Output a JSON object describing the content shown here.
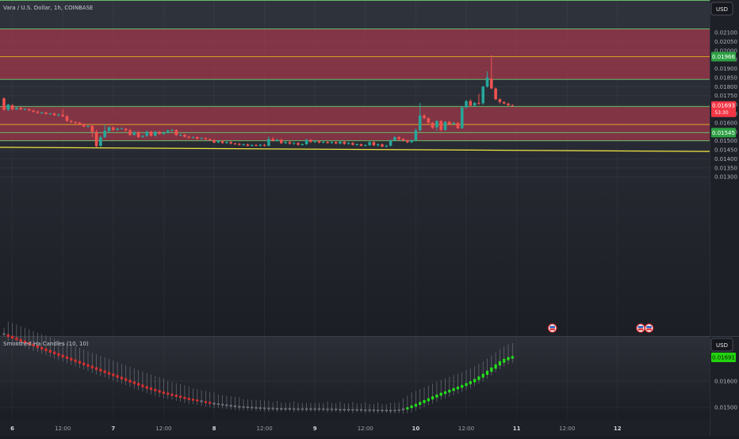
{
  "header": {
    "symbol_title": "Vara / U.S. Dollar, 1h, COINBASE",
    "currency_button": "USD"
  },
  "main_chart": {
    "price_ticks": [
      "0.02100",
      "0.02050",
      "0.02000",
      "0.01950",
      "0.01900",
      "0.01850",
      "0.01800",
      "0.01750",
      "0.01700",
      "0.01650",
      "0.01600",
      "0.01550",
      "0.01500",
      "0.01450",
      "0.01400",
      "0.01350",
      "0.01300"
    ],
    "price_tick_values": [
      0.021,
      0.0205,
      0.02,
      0.0195,
      0.019,
      0.0185,
      0.018,
      0.0175,
      0.017,
      0.0165,
      0.016,
      0.0155,
      0.015,
      0.0145,
      0.014,
      0.0135,
      0.013
    ],
    "labels": {
      "resistance": "0.01966",
      "current_price": "0.01693",
      "countdown": "53:30",
      "support": "0.01545"
    },
    "zones": [
      {
        "name": "upper-supply-zone",
        "top": 0.0212,
        "bottom": 0.0184
      },
      {
        "name": "lower-supply-zone",
        "top": 0.0169,
        "bottom": 0.015
      }
    ],
    "horizontal_lines": [
      {
        "name": "line-0.02120",
        "price": 0.0212,
        "color": "#66bb6a"
      },
      {
        "name": "line-0.01966",
        "price": 0.01966,
        "color": "#d4a027"
      },
      {
        "name": "line-0.01840",
        "price": 0.0184,
        "color": "#66bb6a"
      },
      {
        "name": "line-0.01690",
        "price": 0.0169,
        "color": "#66bb6a"
      },
      {
        "name": "line-0.01590",
        "price": 0.0159,
        "color": "#e6a22e"
      },
      {
        "name": "line-0.01545",
        "price": 0.01545,
        "color": "#66bb6a"
      },
      {
        "name": "line-0.01500",
        "price": 0.015,
        "color": "#66bb6a"
      }
    ],
    "trendline": {
      "from_price": 0.01464,
      "to_price": 0.01441,
      "color": "#f2e643"
    },
    "candles": [
      {
        "o": 0.01735,
        "c": 0.01672,
        "h": 0.0174,
        "l": 0.01665
      },
      {
        "o": 0.01672,
        "c": 0.017,
        "h": 0.01706,
        "l": 0.01664
      },
      {
        "o": 0.01697,
        "c": 0.01674,
        "h": 0.01703,
        "l": 0.01669
      },
      {
        "o": 0.01675,
        "c": 0.01683,
        "h": 0.01688,
        "l": 0.01669
      },
      {
        "o": 0.01682,
        "c": 0.01674,
        "h": 0.01688,
        "l": 0.01669
      },
      {
        "o": 0.01673,
        "c": 0.01676,
        "h": 0.01681,
        "l": 0.01668
      },
      {
        "o": 0.01675,
        "c": 0.01668,
        "h": 0.0168,
        "l": 0.01663
      },
      {
        "o": 0.01667,
        "c": 0.01661,
        "h": 0.01673,
        "l": 0.01656
      },
      {
        "o": 0.01662,
        "c": 0.01655,
        "h": 0.01667,
        "l": 0.0165
      },
      {
        "o": 0.01655,
        "c": 0.01657,
        "h": 0.01662,
        "l": 0.0165
      },
      {
        "o": 0.01656,
        "c": 0.01649,
        "h": 0.01661,
        "l": 0.01644
      },
      {
        "o": 0.01649,
        "c": 0.01651,
        "h": 0.01654,
        "l": 0.01644
      },
      {
        "o": 0.01651,
        "c": 0.01642,
        "h": 0.01656,
        "l": 0.01637
      },
      {
        "o": 0.01643,
        "c": 0.01645,
        "h": 0.01651,
        "l": 0.01636
      },
      {
        "o": 0.01644,
        "c": 0.01636,
        "h": 0.01676,
        "l": 0.01631
      },
      {
        "o": 0.01636,
        "c": 0.0161,
        "h": 0.01642,
        "l": 0.01605
      },
      {
        "o": 0.0161,
        "c": 0.01604,
        "h": 0.01616,
        "l": 0.01598
      },
      {
        "o": 0.01604,
        "c": 0.016,
        "h": 0.01609,
        "l": 0.01593
      },
      {
        "o": 0.016,
        "c": 0.01592,
        "h": 0.01605,
        "l": 0.01586
      },
      {
        "o": 0.01592,
        "c": 0.0158,
        "h": 0.01597,
        "l": 0.01575
      },
      {
        "o": 0.01581,
        "c": 0.01582,
        "h": 0.01587,
        "l": 0.01575
      },
      {
        "o": 0.01582,
        "c": 0.0155,
        "h": 0.01588,
        "l": 0.0152
      },
      {
        "o": 0.0155,
        "c": 0.0147,
        "h": 0.01562,
        "l": 0.01463
      },
      {
        "o": 0.01472,
        "c": 0.0152,
        "h": 0.01527,
        "l": 0.01466
      },
      {
        "o": 0.0152,
        "c": 0.01556,
        "h": 0.01591,
        "l": 0.01515
      },
      {
        "o": 0.01553,
        "c": 0.01575,
        "h": 0.0158,
        "l": 0.01548
      },
      {
        "o": 0.01575,
        "c": 0.0156,
        "h": 0.01578,
        "l": 0.01555
      },
      {
        "o": 0.0156,
        "c": 0.01567,
        "h": 0.01574,
        "l": 0.01555
      },
      {
        "o": 0.01567,
        "c": 0.01568,
        "h": 0.01575,
        "l": 0.01562
      },
      {
        "o": 0.01567,
        "c": 0.01558,
        "h": 0.01571,
        "l": 0.01552
      },
      {
        "o": 0.01558,
        "c": 0.01532,
        "h": 0.01566,
        "l": 0.01528
      },
      {
        "o": 0.01533,
        "c": 0.01548,
        "h": 0.01555,
        "l": 0.01528
      },
      {
        "o": 0.01548,
        "c": 0.01521,
        "h": 0.01553,
        "l": 0.01515
      },
      {
        "o": 0.01521,
        "c": 0.01527,
        "h": 0.01534,
        "l": 0.01516
      },
      {
        "o": 0.01527,
        "c": 0.01551,
        "h": 0.01557,
        "l": 0.01522
      },
      {
        "o": 0.01551,
        "c": 0.01528,
        "h": 0.01556,
        "l": 0.01522
      },
      {
        "o": 0.01528,
        "c": 0.0155,
        "h": 0.01556,
        "l": 0.01524
      },
      {
        "o": 0.0155,
        "c": 0.01538,
        "h": 0.01555,
        "l": 0.01533
      },
      {
        "o": 0.01538,
        "c": 0.01545,
        "h": 0.01552,
        "l": 0.01533
      },
      {
        "o": 0.01545,
        "c": 0.01557,
        "h": 0.01563,
        "l": 0.0154
      },
      {
        "o": 0.01557,
        "c": 0.0156,
        "h": 0.01566,
        "l": 0.01551
      },
      {
        "o": 0.0156,
        "c": 0.01532,
        "h": 0.01565,
        "l": 0.01526
      },
      {
        "o": 0.01532,
        "c": 0.01533,
        "h": 0.0154,
        "l": 0.01526
      },
      {
        "o": 0.01533,
        "c": 0.01523,
        "h": 0.01539,
        "l": 0.01518
      },
      {
        "o": 0.01523,
        "c": 0.01518,
        "h": 0.01528,
        "l": 0.01512
      },
      {
        "o": 0.01518,
        "c": 0.0152,
        "h": 0.01524,
        "l": 0.01513
      },
      {
        "o": 0.0152,
        "c": 0.01512,
        "h": 0.01524,
        "l": 0.01507
      },
      {
        "o": 0.01512,
        "c": 0.01515,
        "h": 0.0152,
        "l": 0.01507
      },
      {
        "o": 0.01514,
        "c": 0.01509,
        "h": 0.0152,
        "l": 0.01504
      },
      {
        "o": 0.01509,
        "c": 0.01504,
        "h": 0.01514,
        "l": 0.01499
      },
      {
        "o": 0.01504,
        "c": 0.0149,
        "h": 0.01509,
        "l": 0.01486
      },
      {
        "o": 0.01491,
        "c": 0.01498,
        "h": 0.01503,
        "l": 0.01486
      },
      {
        "o": 0.01498,
        "c": 0.01488,
        "h": 0.01503,
        "l": 0.01483
      },
      {
        "o": 0.01488,
        "c": 0.01493,
        "h": 0.01498,
        "l": 0.01483
      },
      {
        "o": 0.01493,
        "c": 0.01485,
        "h": 0.01498,
        "l": 0.0148
      },
      {
        "o": 0.01485,
        "c": 0.01483,
        "h": 0.0149,
        "l": 0.01478
      },
      {
        "o": 0.01483,
        "c": 0.01478,
        "h": 0.01488,
        "l": 0.01473
      },
      {
        "o": 0.01478,
        "c": 0.0148,
        "h": 0.01485,
        "l": 0.01473
      },
      {
        "o": 0.0148,
        "c": 0.01473,
        "h": 0.01485,
        "l": 0.01468
      },
      {
        "o": 0.01473,
        "c": 0.01477,
        "h": 0.01482,
        "l": 0.01468
      },
      {
        "o": 0.01477,
        "c": 0.01473,
        "h": 0.01482,
        "l": 0.01468
      },
      {
        "o": 0.01473,
        "c": 0.01478,
        "h": 0.01483,
        "l": 0.01468
      },
      {
        "o": 0.01478,
        "c": 0.01473,
        "h": 0.01483,
        "l": 0.01468
      },
      {
        "o": 0.01473,
        "c": 0.0151,
        "h": 0.01525,
        "l": 0.01468
      },
      {
        "o": 0.0151,
        "c": 0.015,
        "h": 0.01521,
        "l": 0.01495
      },
      {
        "o": 0.015,
        "c": 0.01505,
        "h": 0.01511,
        "l": 0.01495
      },
      {
        "o": 0.01505,
        "c": 0.01487,
        "h": 0.01513,
        "l": 0.01482
      },
      {
        "o": 0.01487,
        "c": 0.01493,
        "h": 0.01498,
        "l": 0.01482
      },
      {
        "o": 0.01493,
        "c": 0.01484,
        "h": 0.015,
        "l": 0.01479
      },
      {
        "o": 0.01484,
        "c": 0.01488,
        "h": 0.01493,
        "l": 0.01478
      },
      {
        "o": 0.01488,
        "c": 0.01478,
        "h": 0.01492,
        "l": 0.01473
      },
      {
        "o": 0.01478,
        "c": 0.01481,
        "h": 0.01487,
        "l": 0.01473
      },
      {
        "o": 0.01481,
        "c": 0.01505,
        "h": 0.01511,
        "l": 0.01476
      },
      {
        "o": 0.01505,
        "c": 0.01493,
        "h": 0.0151,
        "l": 0.01488
      },
      {
        "o": 0.01493,
        "c": 0.01498,
        "h": 0.01503,
        "l": 0.01488
      },
      {
        "o": 0.01498,
        "c": 0.0149,
        "h": 0.01503,
        "l": 0.01485
      },
      {
        "o": 0.0149,
        "c": 0.01494,
        "h": 0.01499,
        "l": 0.01485
      },
      {
        "o": 0.01494,
        "c": 0.01488,
        "h": 0.015,
        "l": 0.01483
      },
      {
        "o": 0.01488,
        "c": 0.01493,
        "h": 0.01498,
        "l": 0.01483
      },
      {
        "o": 0.01493,
        "c": 0.01485,
        "h": 0.01498,
        "l": 0.0148
      },
      {
        "o": 0.01485,
        "c": 0.01495,
        "h": 0.015,
        "l": 0.0148
      },
      {
        "o": 0.01495,
        "c": 0.01483,
        "h": 0.015,
        "l": 0.01478
      },
      {
        "o": 0.01483,
        "c": 0.01488,
        "h": 0.01493,
        "l": 0.01478
      },
      {
        "o": 0.01488,
        "c": 0.01478,
        "h": 0.01493,
        "l": 0.01473
      },
      {
        "o": 0.01478,
        "c": 0.01481,
        "h": 0.01486,
        "l": 0.01473
      },
      {
        "o": 0.01481,
        "c": 0.01473,
        "h": 0.01486,
        "l": 0.01468
      },
      {
        "o": 0.01473,
        "c": 0.01476,
        "h": 0.01481,
        "l": 0.01468
      },
      {
        "o": 0.01476,
        "c": 0.01493,
        "h": 0.01498,
        "l": 0.0147
      },
      {
        "o": 0.01493,
        "c": 0.01475,
        "h": 0.01498,
        "l": 0.0147
      },
      {
        "o": 0.01475,
        "c": 0.0148,
        "h": 0.01486,
        "l": 0.01468
      },
      {
        "o": 0.0148,
        "c": 0.01468,
        "h": 0.01486,
        "l": 0.01463
      },
      {
        "o": 0.01469,
        "c": 0.01473,
        "h": 0.01478,
        "l": 0.01462
      },
      {
        "o": 0.01473,
        "c": 0.01503,
        "h": 0.01508,
        "l": 0.01468
      },
      {
        "o": 0.01503,
        "c": 0.0152,
        "h": 0.01528,
        "l": 0.01498
      },
      {
        "o": 0.0152,
        "c": 0.0151,
        "h": 0.01525,
        "l": 0.015
      },
      {
        "o": 0.0151,
        "c": 0.01502,
        "h": 0.01515,
        "l": 0.01496
      },
      {
        "o": 0.01502,
        "c": 0.01492,
        "h": 0.01507,
        "l": 0.01486
      },
      {
        "o": 0.01492,
        "c": 0.01503,
        "h": 0.01509,
        "l": 0.01487
      },
      {
        "o": 0.01503,
        "c": 0.01558,
        "h": 0.01569,
        "l": 0.01497
      },
      {
        "o": 0.01558,
        "c": 0.0164,
        "h": 0.0171,
        "l": 0.01551
      },
      {
        "o": 0.0164,
        "c": 0.01625,
        "h": 0.01648,
        "l": 0.0162
      },
      {
        "o": 0.01625,
        "c": 0.016,
        "h": 0.0163,
        "l": 0.01594
      },
      {
        "o": 0.016,
        "c": 0.01572,
        "h": 0.01605,
        "l": 0.01566
      },
      {
        "o": 0.01575,
        "c": 0.0161,
        "h": 0.01615,
        "l": 0.01556
      },
      {
        "o": 0.0161,
        "c": 0.0156,
        "h": 0.01615,
        "l": 0.01552
      },
      {
        "o": 0.0156,
        "c": 0.01605,
        "h": 0.0161,
        "l": 0.01555
      },
      {
        "o": 0.01605,
        "c": 0.01592,
        "h": 0.0161,
        "l": 0.01587
      },
      {
        "o": 0.01592,
        "c": 0.01599,
        "h": 0.01605,
        "l": 0.01586
      },
      {
        "o": 0.01599,
        "c": 0.0157,
        "h": 0.01604,
        "l": 0.01565
      },
      {
        "o": 0.0157,
        "c": 0.01685,
        "h": 0.0169,
        "l": 0.01565
      },
      {
        "o": 0.01685,
        "c": 0.0172,
        "h": 0.01725,
        "l": 0.01678
      },
      {
        "o": 0.0172,
        "c": 0.01695,
        "h": 0.0173,
        "l": 0.0169
      },
      {
        "o": 0.01695,
        "c": 0.0171,
        "h": 0.01715,
        "l": 0.0169
      },
      {
        "o": 0.0171,
        "c": 0.01708,
        "h": 0.0176,
        "l": 0.01698
      },
      {
        "o": 0.01708,
        "c": 0.018,
        "h": 0.01805,
        "l": 0.017
      },
      {
        "o": 0.018,
        "c": 0.0185,
        "h": 0.01885,
        "l": 0.01795
      },
      {
        "o": 0.01845,
        "c": 0.0179,
        "h": 0.01975,
        "l": 0.01785
      },
      {
        "o": 0.0179,
        "c": 0.0173,
        "h": 0.01795,
        "l": 0.01725
      },
      {
        "o": 0.0173,
        "c": 0.01715,
        "h": 0.01736,
        "l": 0.01705
      },
      {
        "o": 0.01715,
        "c": 0.01707,
        "h": 0.0172,
        "l": 0.01702
      },
      {
        "o": 0.01706,
        "c": 0.01697,
        "h": 0.01712,
        "l": 0.01693
      },
      {
        "o": 0.01697,
        "c": 0.01693,
        "h": 0.01702,
        "l": 0.0169
      }
    ],
    "events": [
      {
        "name": "event-marker-1",
        "candle_index": 130.5,
        "glyph": "▲"
      },
      {
        "name": "event-marker-2",
        "candle_index": 151.5,
        "glyph": "▲"
      },
      {
        "name": "event-marker-3",
        "candle_index": 153.5,
        "glyph": "▲"
      }
    ]
  },
  "indicator": {
    "title": "Smoothed Ha Candles (10, 10)",
    "currency_button": "USD",
    "last_value_label": "0.01691",
    "price_ticks": [
      "0.01600",
      "0.01500"
    ],
    "price_tick_values": [
      0.016,
      0.015
    ],
    "values": [
      0.0178,
      0.01774,
      0.01768,
      0.01762,
      0.01756,
      0.0175,
      0.01744,
      0.01738,
      0.01732,
      0.01726,
      0.0172,
      0.01714,
      0.01708,
      0.01702,
      0.01696,
      0.0169,
      0.01684,
      0.01678,
      0.01672,
      0.01666,
      0.0166,
      0.01654,
      0.01648,
      0.01642,
      0.01636,
      0.0163,
      0.01624,
      0.01618,
      0.01612,
      0.01606,
      0.016,
      0.01594,
      0.01588,
      0.01582,
      0.01576,
      0.01571,
      0.01566,
      0.01561,
      0.01556,
      0.01552,
      0.01548,
      0.01544,
      0.0154,
      0.01536,
      0.01532,
      0.01529,
      0.01526,
      0.01523,
      0.0152,
      0.01517,
      0.01514,
      0.01512,
      0.0151,
      0.01508,
      0.01506,
      0.01504,
      0.01502,
      0.01501,
      0.015,
      0.01499,
      0.01498,
      0.01497,
      0.01496,
      0.01495,
      0.01495,
      0.01494,
      0.01494,
      0.01494,
      0.01494,
      0.01493,
      0.01493,
      0.01493,
      0.01493,
      0.01493,
      0.01493,
      0.01493,
      0.01493,
      0.01492,
      0.01492,
      0.01492,
      0.01491,
      0.01491,
      0.01491,
      0.0149,
      0.0149,
      0.0149,
      0.01489,
      0.01489,
      0.01489,
      0.01488,
      0.01488,
      0.01488,
      0.01487,
      0.01488,
      0.01489,
      0.01492,
      0.01496,
      0.01502,
      0.01508,
      0.01515,
      0.01522,
      0.01529,
      0.01536,
      0.01543,
      0.0155,
      0.01556,
      0.01562,
      0.01568,
      0.01574,
      0.0158,
      0.01587,
      0.01594,
      0.01602,
      0.01611,
      0.01621,
      0.01632,
      0.01644,
      0.01656,
      0.01668,
      0.01678,
      0.01686,
      0.01691
    ],
    "colors": {
      "down": "#d32f2f",
      "flat": "#6b6e78",
      "up": "#22e01a"
    }
  },
  "time_axis": {
    "ticks": [
      {
        "label": "6",
        "candle_index": 2
      },
      {
        "label": "12:00",
        "candle_index": 14
      },
      {
        "label": "7",
        "candle_index": 26
      },
      {
        "label": "12:00",
        "candle_index": 38
      },
      {
        "label": "8",
        "candle_index": 50
      },
      {
        "label": "12:00",
        "candle_index": 62
      },
      {
        "label": "9",
        "candle_index": 74
      },
      {
        "label": "12:00",
        "candle_index": 86
      },
      {
        "label": "10",
        "candle_index": 98
      },
      {
        "label": "12:00",
        "candle_index": 110
      },
      {
        "label": "11",
        "candle_index": 122
      },
      {
        "label": "12:00",
        "candle_index": 134
      },
      {
        "label": "12",
        "candle_index": 146
      }
    ]
  },
  "colors": {
    "background": "#1b1d24",
    "zone_fill": "#a4384b",
    "candle_up": "#26a69a",
    "candle_down": "#ef5350",
    "label_green": "#2ea043",
    "label_red": "#f23645",
    "indicator_label": "#23d40e"
  }
}
